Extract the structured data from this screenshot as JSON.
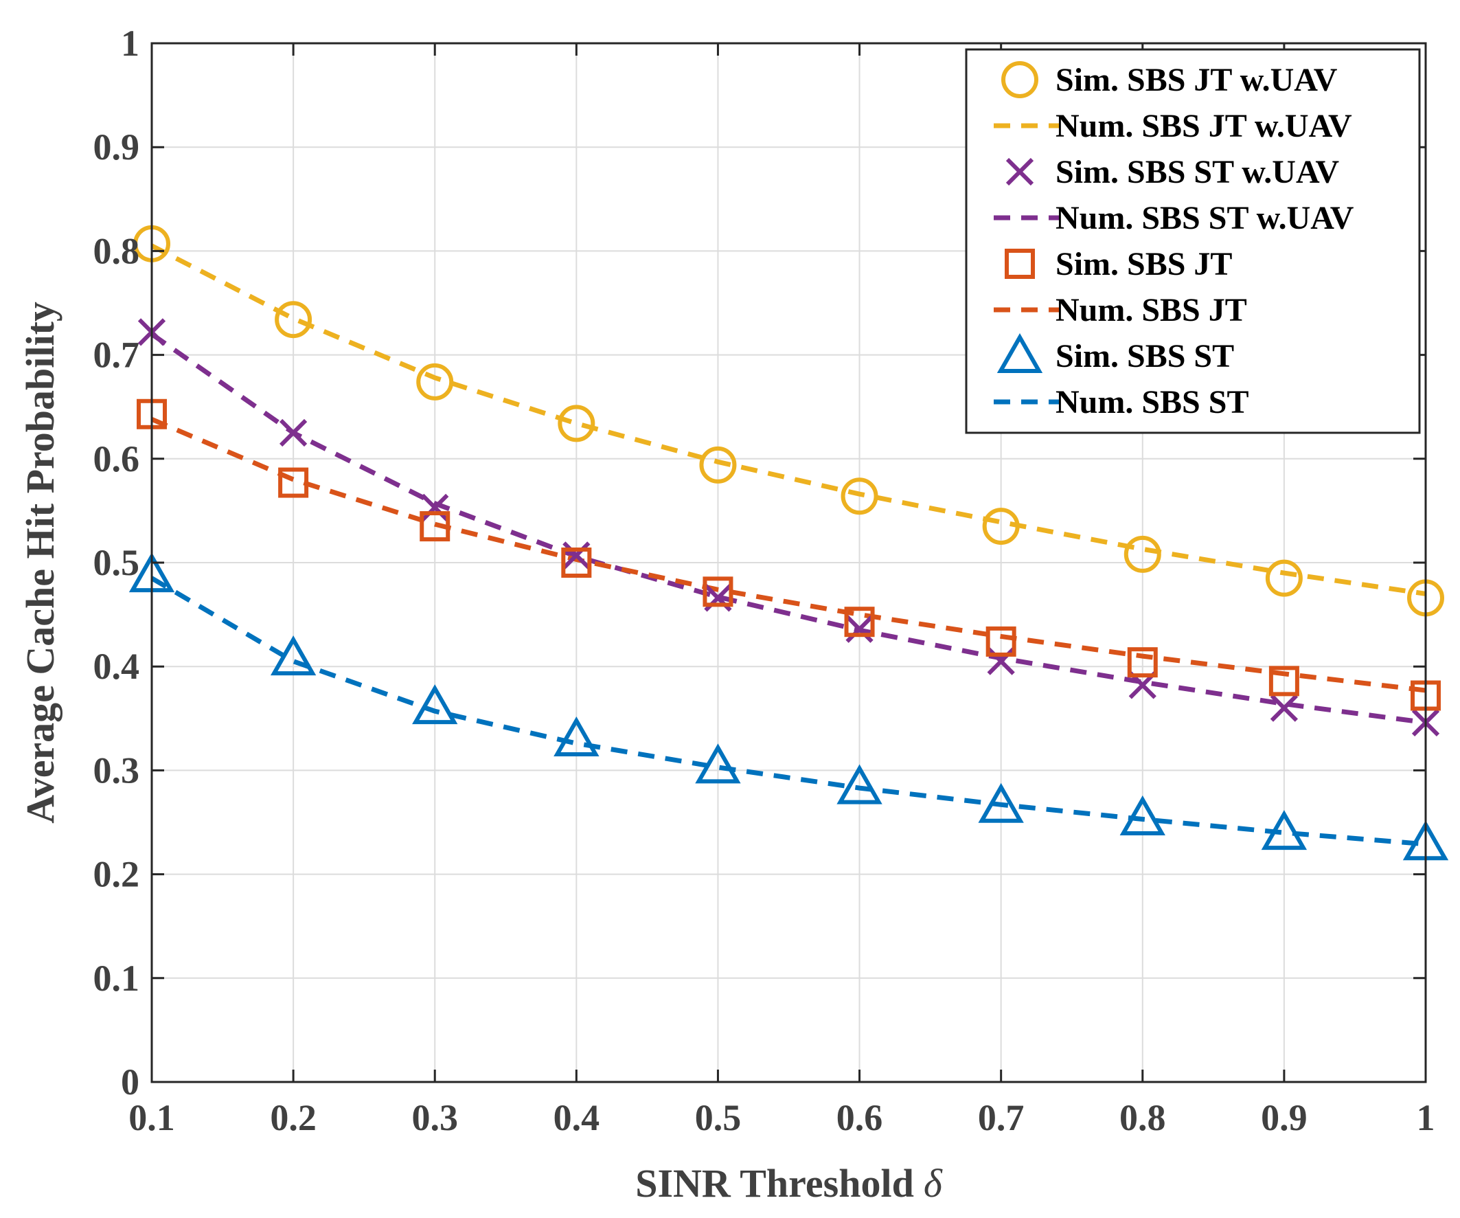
{
  "chart_data": {
    "type": "line",
    "xlabel": "SINR Threshold",
    "xlabel_symbol": "δ",
    "ylabel": "Average Cache Hit Probability",
    "xlim": [
      0.1,
      1
    ],
    "ylim": [
      0,
      1
    ],
    "grid": true,
    "legend_position": "top-right",
    "x": [
      0.1,
      0.2,
      0.3,
      0.4,
      0.5,
      0.6,
      0.7,
      0.8,
      0.9,
      1
    ],
    "x_tick_labels": [
      "0.1",
      "0.2",
      "0.3",
      "0.4",
      "0.5",
      "0.6",
      "0.7",
      "0.8",
      "0.9",
      "1"
    ],
    "y_tick_labels": [
      "0",
      "0.1",
      "0.2",
      "0.3",
      "0.4",
      "0.5",
      "0.6",
      "0.7",
      "0.8",
      "0.9",
      "1"
    ],
    "y_ticks": [
      0,
      0.1,
      0.2,
      0.3,
      0.4,
      0.5,
      0.6,
      0.7,
      0.8,
      0.9,
      1
    ],
    "series": [
      {
        "name": "Sim. SBS JT w.UAV",
        "kind": "marker",
        "marker": "circle",
        "color": "#EDB120",
        "values": [
          0.807,
          0.734,
          0.674,
          0.634,
          0.594,
          0.564,
          0.535,
          0.508,
          0.485,
          0.466
        ]
      },
      {
        "name": "Num. SBS JT w.UAV",
        "kind": "dashed",
        "color": "#EDB120",
        "values": [
          0.805,
          0.735,
          0.678,
          0.634,
          0.597,
          0.566,
          0.539,
          0.513,
          0.49,
          0.47
        ]
      },
      {
        "name": "Sim. SBS ST w.UAV",
        "kind": "marker",
        "marker": "x",
        "color": "#7E2F8E",
        "values": [
          0.722,
          0.625,
          0.553,
          0.507,
          0.466,
          0.436,
          0.405,
          0.382,
          0.36,
          0.346
        ]
      },
      {
        "name": "Num. SBS ST w.UAV",
        "kind": "dashed",
        "color": "#7E2F8E",
        "values": [
          0.72,
          0.625,
          0.557,
          0.506,
          0.467,
          0.435,
          0.408,
          0.385,
          0.364,
          0.346
        ]
      },
      {
        "name": "Sim. SBS JT",
        "kind": "marker",
        "marker": "square",
        "color": "#D95319",
        "values": [
          0.643,
          0.577,
          0.535,
          0.5,
          0.472,
          0.443,
          0.424,
          0.404,
          0.386,
          0.372
        ]
      },
      {
        "name": "Num. SBS JT",
        "kind": "dashed",
        "color": "#D95319",
        "values": [
          0.638,
          0.58,
          0.537,
          0.503,
          0.474,
          0.45,
          0.429,
          0.41,
          0.393,
          0.377
        ]
      },
      {
        "name": "Sim. SBS ST",
        "kind": "marker",
        "marker": "triangle",
        "color": "#0072BD",
        "values": [
          0.488,
          0.408,
          0.361,
          0.33,
          0.304,
          0.284,
          0.266,
          0.254,
          0.24,
          0.23
        ]
      },
      {
        "name": "Num. SBS ST",
        "kind": "dashed",
        "color": "#0072BD",
        "values": [
          0.485,
          0.405,
          0.357,
          0.326,
          0.303,
          0.283,
          0.267,
          0.253,
          0.24,
          0.229
        ]
      }
    ]
  }
}
